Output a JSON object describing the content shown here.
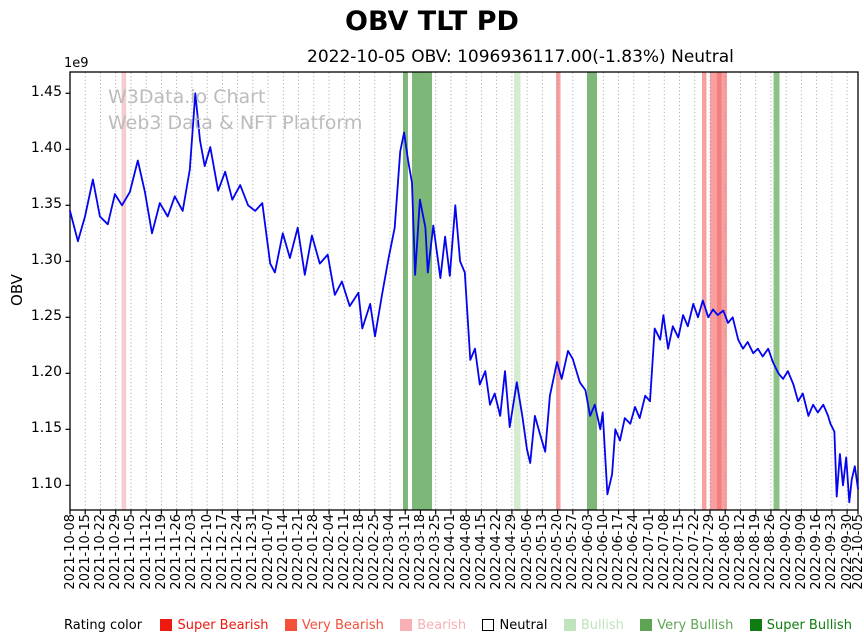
{
  "figure": {
    "title": "OBV TLT PD",
    "subtitle": "2022-10-05 OBV: 1096936117.00(-1.83%) Neutral",
    "watermark_line1": "W3Data.io Chart",
    "watermark_line2": "Web3 Data & NFT Platform"
  },
  "legend": {
    "title": "Rating color",
    "items": [
      {
        "label": "Super Bearish",
        "swatch": "#ed1a10",
        "border": "#ed1a10",
        "text_color": "#ed1a10"
      },
      {
        "label": "Very Bearish",
        "swatch": "#f4503a",
        "border": "#f4503a",
        "text_color": "#f4503a"
      },
      {
        "label": "Bearish",
        "swatch": "#f8b0b4",
        "border": "#f8b0b4",
        "text_color": "#f8b0b4"
      },
      {
        "label": "Neutral",
        "swatch": "#ffffff",
        "border": "#000000",
        "text_color": "#000000"
      },
      {
        "label": "Bullish",
        "swatch": "#bfe3bb",
        "border": "#bfe3bb",
        "text_color": "#bfe3bb"
      },
      {
        "label": "Very Bullish",
        "swatch": "#5fa455",
        "border": "#5fa455",
        "text_color": "#5fa455"
      },
      {
        "label": "Super Bullish",
        "swatch": "#117c11",
        "border": "#117c11",
        "text_color": "#117c11"
      }
    ]
  },
  "chart_data": {
    "type": "line",
    "title": "OBV TLT PD",
    "subtitle": "2022-10-05 OBV: 1096936117.00(-1.83%) Neutral",
    "ylabel": "OBV",
    "y_scale_factor_label": "1e9",
    "ylim": [
      1.078,
      1.469
    ],
    "y_ticks": [
      1.1,
      1.15,
      1.2,
      1.25,
      1.3,
      1.35,
      1.4,
      1.45
    ],
    "grid": "vertical-dotted",
    "x_total_days": 362,
    "x_tick_labels": [
      "2021-10-08",
      "2021-10-15",
      "2021-10-22",
      "2021-10-29",
      "2021-11-05",
      "2021-11-12",
      "2021-11-19",
      "2021-11-26",
      "2021-12-03",
      "2021-12-10",
      "2021-12-17",
      "2021-12-24",
      "2021-12-31",
      "2022-01-07",
      "2022-01-14",
      "2022-01-21",
      "2022-01-28",
      "2022-02-04",
      "2022-02-11",
      "2022-02-18",
      "2022-02-25",
      "2022-03-04",
      "2022-03-11",
      "2022-03-18",
      "2022-03-25",
      "2022-04-01",
      "2022-04-08",
      "2022-04-15",
      "2022-04-22",
      "2022-04-29",
      "2022-05-06",
      "2022-05-13",
      "2022-05-20",
      "2022-05-27",
      "2022-06-03",
      "2022-06-10",
      "2022-06-17",
      "2022-06-24",
      "2022-07-01",
      "2022-07-08",
      "2022-07-15",
      "2022-07-22",
      "2022-07-29",
      "2022-08-05",
      "2022-08-12",
      "2022-08-19",
      "2022-08-26",
      "2022-09-02",
      "2022-09-09",
      "2022-09-16",
      "2022-09-23",
      "2022-09-30",
      "2022-10-05"
    ],
    "rating_bands": [
      {
        "start": 0.0654,
        "end": 0.0713,
        "rating": "Bearish",
        "color": "#f6cdcf"
      },
      {
        "start": 0.4226,
        "end": 0.4289,
        "rating": "Very Bullish",
        "color": "#7db878"
      },
      {
        "start": 0.434,
        "end": 0.4594,
        "rating": "Very Bullish",
        "color": "#7db878"
      },
      {
        "start": 0.5635,
        "end": 0.5717,
        "rating": "Bullish",
        "color": "#d4ebd0"
      },
      {
        "start": 0.6168,
        "end": 0.6225,
        "rating": "Very Bearish",
        "color": "#f89f9f"
      },
      {
        "start": 0.6561,
        "end": 0.6688,
        "rating": "Very Bullish",
        "color": "#7db878"
      },
      {
        "start": 0.802,
        "end": 0.8077,
        "rating": "Very Bearish",
        "color": "#f89f9f"
      },
      {
        "start": 0.8122,
        "end": 0.8338,
        "rating": "Very Bearish",
        "color": "#f89f9f"
      },
      {
        "start": 0.821,
        "end": 0.8268,
        "rating": "Very Bearish",
        "color": "#f57f7f"
      },
      {
        "start": 0.8928,
        "end": 0.9004,
        "rating": "Very Bullish",
        "color": "#8cc187"
      }
    ],
    "series": [
      {
        "name": "OBV",
        "color": "#0404ef",
        "points": [
          [
            0.0,
            1.345
          ],
          [
            0.01,
            1.318
          ],
          [
            0.019,
            1.34
          ],
          [
            0.029,
            1.373
          ],
          [
            0.038,
            1.34
          ],
          [
            0.048,
            1.333
          ],
          [
            0.057,
            1.36
          ],
          [
            0.066,
            1.35
          ],
          [
            0.076,
            1.362
          ],
          [
            0.086,
            1.39
          ],
          [
            0.095,
            1.362
          ],
          [
            0.104,
            1.325
          ],
          [
            0.114,
            1.352
          ],
          [
            0.124,
            1.34
          ],
          [
            0.133,
            1.358
          ],
          [
            0.143,
            1.345
          ],
          [
            0.152,
            1.382
          ],
          [
            0.159,
            1.45
          ],
          [
            0.165,
            1.408
          ],
          [
            0.171,
            1.385
          ],
          [
            0.178,
            1.402
          ],
          [
            0.188,
            1.363
          ],
          [
            0.197,
            1.38
          ],
          [
            0.206,
            1.355
          ],
          [
            0.216,
            1.368
          ],
          [
            0.226,
            1.35
          ],
          [
            0.235,
            1.345
          ],
          [
            0.244,
            1.352
          ],
          [
            0.254,
            1.298
          ],
          [
            0.26,
            1.29
          ],
          [
            0.27,
            1.325
          ],
          [
            0.279,
            1.303
          ],
          [
            0.289,
            1.33
          ],
          [
            0.298,
            1.288
          ],
          [
            0.307,
            1.323
          ],
          [
            0.317,
            1.298
          ],
          [
            0.327,
            1.306
          ],
          [
            0.336,
            1.27
          ],
          [
            0.345,
            1.282
          ],
          [
            0.355,
            1.26
          ],
          [
            0.366,
            1.272
          ],
          [
            0.371,
            1.24
          ],
          [
            0.381,
            1.262
          ],
          [
            0.387,
            1.233
          ],
          [
            0.396,
            1.27
          ],
          [
            0.404,
            1.302
          ],
          [
            0.412,
            1.33
          ],
          [
            0.419,
            1.398
          ],
          [
            0.424,
            1.415
          ],
          [
            0.429,
            1.39
          ],
          [
            0.434,
            1.37
          ],
          [
            0.438,
            1.288
          ],
          [
            0.444,
            1.355
          ],
          [
            0.451,
            1.33
          ],
          [
            0.454,
            1.29
          ],
          [
            0.461,
            1.332
          ],
          [
            0.47,
            1.285
          ],
          [
            0.476,
            1.322
          ],
          [
            0.482,
            1.287
          ],
          [
            0.489,
            1.35
          ],
          [
            0.495,
            1.3
          ],
          [
            0.501,
            1.29
          ],
          [
            0.508,
            1.212
          ],
          [
            0.514,
            1.222
          ],
          [
            0.52,
            1.19
          ],
          [
            0.527,
            1.202
          ],
          [
            0.533,
            1.172
          ],
          [
            0.539,
            1.182
          ],
          [
            0.546,
            1.162
          ],
          [
            0.552,
            1.202
          ],
          [
            0.558,
            1.152
          ],
          [
            0.567,
            1.192
          ],
          [
            0.574,
            1.162
          ],
          [
            0.58,
            1.132
          ],
          [
            0.584,
            1.12
          ],
          [
            0.59,
            1.162
          ],
          [
            0.596,
            1.147
          ],
          [
            0.603,
            1.13
          ],
          [
            0.609,
            1.18
          ],
          [
            0.618,
            1.21
          ],
          [
            0.624,
            1.195
          ],
          [
            0.632,
            1.22
          ],
          [
            0.638,
            1.213
          ],
          [
            0.647,
            1.192
          ],
          [
            0.654,
            1.185
          ],
          [
            0.66,
            1.162
          ],
          [
            0.666,
            1.172
          ],
          [
            0.673,
            1.15
          ],
          [
            0.676,
            1.165
          ],
          [
            0.682,
            1.092
          ],
          [
            0.688,
            1.11
          ],
          [
            0.692,
            1.15
          ],
          [
            0.698,
            1.14
          ],
          [
            0.704,
            1.16
          ],
          [
            0.711,
            1.155
          ],
          [
            0.717,
            1.17
          ],
          [
            0.723,
            1.16
          ],
          [
            0.73,
            1.18
          ],
          [
            0.736,
            1.175
          ],
          [
            0.742,
            1.24
          ],
          [
            0.749,
            1.23
          ],
          [
            0.753,
            1.252
          ],
          [
            0.759,
            1.222
          ],
          [
            0.765,
            1.242
          ],
          [
            0.772,
            1.232
          ],
          [
            0.778,
            1.252
          ],
          [
            0.784,
            1.242
          ],
          [
            0.791,
            1.262
          ],
          [
            0.797,
            1.25
          ],
          [
            0.803,
            1.265
          ],
          [
            0.81,
            1.25
          ],
          [
            0.816,
            1.257
          ],
          [
            0.822,
            1.252
          ],
          [
            0.829,
            1.256
          ],
          [
            0.835,
            1.245
          ],
          [
            0.841,
            1.25
          ],
          [
            0.848,
            1.23
          ],
          [
            0.854,
            1.222
          ],
          [
            0.86,
            1.228
          ],
          [
            0.867,
            1.218
          ],
          [
            0.873,
            1.222
          ],
          [
            0.879,
            1.215
          ],
          [
            0.886,
            1.222
          ],
          [
            0.892,
            1.21
          ],
          [
            0.899,
            1.2
          ],
          [
            0.905,
            1.195
          ],
          [
            0.911,
            1.202
          ],
          [
            0.918,
            1.19
          ],
          [
            0.924,
            1.175
          ],
          [
            0.93,
            1.182
          ],
          [
            0.937,
            1.162
          ],
          [
            0.943,
            1.172
          ],
          [
            0.949,
            1.165
          ],
          [
            0.956,
            1.172
          ],
          [
            0.962,
            1.162
          ],
          [
            0.965,
            1.155
          ],
          [
            0.97,
            1.148
          ],
          [
            0.973,
            1.09
          ],
          [
            0.977,
            1.128
          ],
          [
            0.981,
            1.1
          ],
          [
            0.985,
            1.125
          ],
          [
            0.989,
            1.085
          ],
          [
            0.992,
            1.105
          ],
          [
            0.996,
            1.117
          ],
          [
            1.0,
            1.097
          ]
        ]
      }
    ]
  }
}
